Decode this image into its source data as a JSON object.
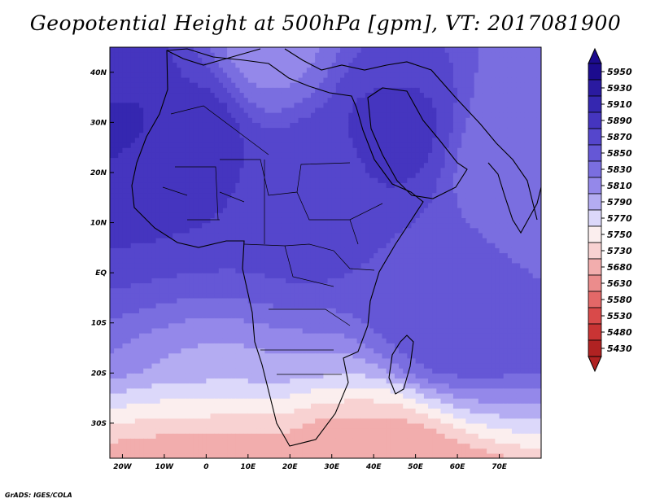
{
  "title": "Geopotential Height at 500hPa [gpm], VT: 2017081900",
  "credit": "GrADS: IGES/COLA",
  "chart_data": {
    "type": "heatmap",
    "title": "Geopotential Height at 500hPa [gpm], VT: 2017081900",
    "variable": "Geopotential Height",
    "level": "500hPa",
    "units": "gpm",
    "valid_time": "2017081900",
    "lon_range": [
      -23,
      80
    ],
    "lat_range": [
      -37,
      45
    ],
    "x_ticks": [
      {
        "lon": -20,
        "label": "20W"
      },
      {
        "lon": -10,
        "label": "10W"
      },
      {
        "lon": 0,
        "label": "0"
      },
      {
        "lon": 10,
        "label": "10E"
      },
      {
        "lon": 20,
        "label": "20E"
      },
      {
        "lon": 30,
        "label": "30E"
      },
      {
        "lon": 40,
        "label": "40E"
      },
      {
        "lon": 50,
        "label": "50E"
      },
      {
        "lon": 60,
        "label": "60E"
      },
      {
        "lon": 70,
        "label": "70E"
      }
    ],
    "y_ticks": [
      {
        "lat": 40,
        "label": "40N"
      },
      {
        "lat": 30,
        "label": "30N"
      },
      {
        "lat": 20,
        "label": "20N"
      },
      {
        "lat": 10,
        "label": "10N"
      },
      {
        "lat": 0,
        "label": "EQ"
      },
      {
        "lat": -10,
        "label": "10S"
      },
      {
        "lat": -20,
        "label": "20S"
      },
      {
        "lat": -30,
        "label": "30S"
      }
    ],
    "colorbar": {
      "levels": [
        5950,
        5930,
        5910,
        5890,
        5870,
        5850,
        5830,
        5810,
        5790,
        5770,
        5750,
        5730,
        5680,
        5630,
        5580,
        5530,
        5480,
        5430
      ],
      "colors": [
        "#1c0b8e",
        "#2a1aa0",
        "#3527b0",
        "#4535bf",
        "#5546cc",
        "#6557d6",
        "#7a6ee0",
        "#9488ea",
        "#b4acf2",
        "#dcd8fa",
        "#fbeeee",
        "#f8d2d2",
        "#f2adad",
        "#eb8c8c",
        "#e36868",
        "#d94a4a",
        "#c93434",
        "#b02222"
      ]
    },
    "field_centers": [
      {
        "lon": -20,
        "lat": 37,
        "value": 5950
      },
      {
        "lon": -2,
        "lat": 30,
        "value": 5925
      },
      {
        "lon": 45,
        "lat": 30,
        "value": 5920
      },
      {
        "lon": 26,
        "lat": 18,
        "value": 5895
      },
      {
        "lon": 55,
        "lat": -5,
        "value": 5860
      },
      {
        "lon": 14,
        "lat": 44,
        "value": 5800
      },
      {
        "lon": 72,
        "lat": 22,
        "value": 5805
      },
      {
        "lon": 5,
        "lat": -35,
        "value": 5735
      },
      {
        "lon": 38,
        "lat": -35,
        "value": 5700
      }
    ]
  }
}
